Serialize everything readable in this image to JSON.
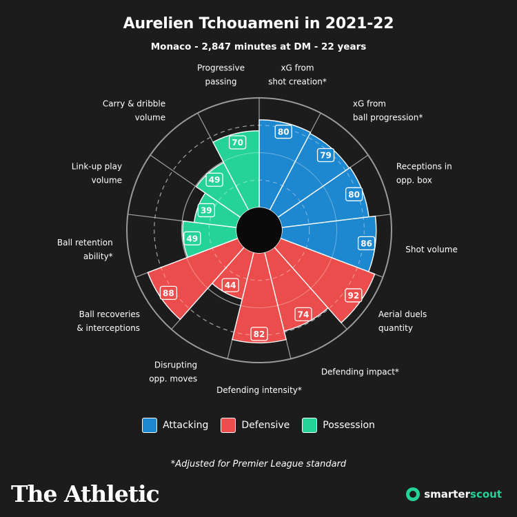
{
  "title": "Aurelien Tchouameni in 2021-22",
  "subtitle": "Monaco - 2,847 minutes at DM - 22 years",
  "colors": {
    "Attacking": "#1d87cf",
    "Defensive": "#eb4d4d",
    "Possession": "#25d398",
    "background": "#1c1c1c"
  },
  "chart_data": {
    "type": "radar-bar",
    "scale": [
      0,
      100
    ],
    "grid": true,
    "metrics": [
      {
        "label": "xG from\nshot creation*",
        "value": 80,
        "category": "Attacking"
      },
      {
        "label": "xG from\nball progression*",
        "value": 79,
        "category": "Attacking"
      },
      {
        "label": "Receptions in\nopp. box",
        "value": 80,
        "category": "Attacking"
      },
      {
        "label": "Shot volume",
        "value": 86,
        "category": "Attacking"
      },
      {
        "label": "Aerial duels\nquantity",
        "value": 92,
        "category": "Defensive"
      },
      {
        "label": "Defending impact*",
        "value": 74,
        "category": "Defensive"
      },
      {
        "label": "Defending intensity*",
        "value": 82,
        "category": "Defensive"
      },
      {
        "label": "Disrupting\nopp. moves",
        "value": 44,
        "category": "Defensive"
      },
      {
        "label": "Ball recoveries\n& interceptions",
        "value": 88,
        "category": "Defensive"
      },
      {
        "label": "Ball retention\nability*",
        "value": 49,
        "category": "Possession"
      },
      {
        "label": "Link-up play\nvolume",
        "value": 39,
        "category": "Possession"
      },
      {
        "label": "Carry & dribble\nvolume",
        "value": 49,
        "category": "Possession"
      },
      {
        "label": "Progressive\npassing",
        "value": 70,
        "category": "Possession"
      }
    ]
  },
  "legend": [
    "Attacking",
    "Defensive",
    "Possession"
  ],
  "footnote": "*Adjusted for Premier League standard",
  "brand_left": "The Athletic",
  "brand_right_1": "smarter",
  "brand_right_2": "scout"
}
